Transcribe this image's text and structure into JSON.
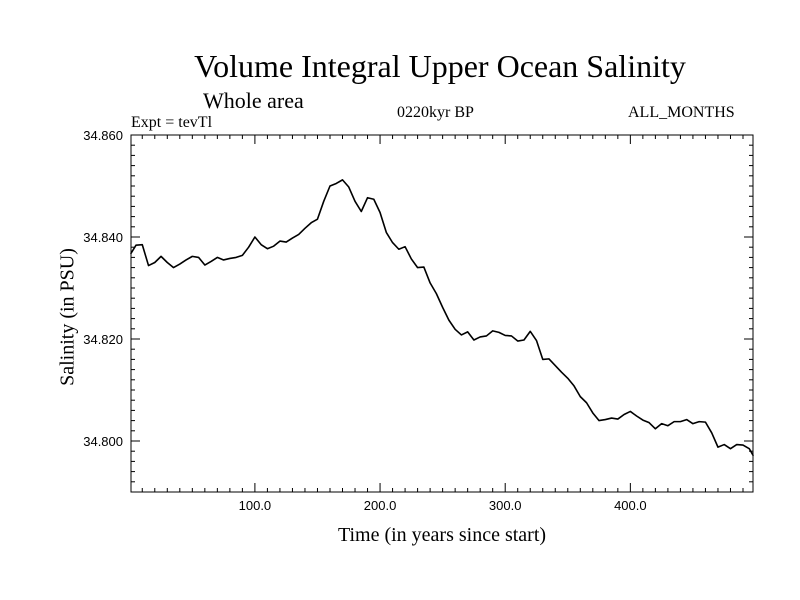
{
  "chart_data": {
    "type": "line",
    "title": "Volume Integral Upper Ocean Salinity",
    "subtitle": "Whole area",
    "experiment": "Expt = tevTl",
    "period": "0220kyr BP",
    "months": "ALL_MONTHS",
    "xlabel": "Time (in years since start)",
    "ylabel": "Salinity (in PSU)",
    "xlim": [
      1,
      498
    ],
    "ylim": [
      34.79,
      34.86
    ],
    "xticks": [
      {
        "value": 100,
        "label": "100.0"
      },
      {
        "value": 200,
        "label": "200.0"
      },
      {
        "value": 300,
        "label": "300.0"
      },
      {
        "value": 400,
        "label": "400.0"
      }
    ],
    "yticks": [
      {
        "value": 34.8,
        "label": "34.800"
      },
      {
        "value": 34.82,
        "label": "34.820"
      },
      {
        "value": 34.84,
        "label": "34.840"
      },
      {
        "value": 34.86,
        "label": "34.860"
      }
    ],
    "grid": false,
    "series": [
      {
        "name": "Salinity",
        "x": [
          1,
          5,
          10,
          15,
          20,
          25,
          30,
          35,
          40,
          45,
          50,
          55,
          60,
          65,
          70,
          75,
          80,
          85,
          90,
          95,
          100,
          105,
          110,
          115,
          120,
          125,
          130,
          135,
          140,
          145,
          150,
          155,
          160,
          165,
          170,
          175,
          180,
          185,
          190,
          195,
          200,
          205,
          210,
          215,
          220,
          225,
          230,
          235,
          240,
          245,
          250,
          255,
          260,
          265,
          270,
          275,
          280,
          285,
          290,
          295,
          300,
          305,
          310,
          315,
          320,
          325,
          330,
          335,
          340,
          345,
          350,
          355,
          360,
          365,
          370,
          375,
          380,
          385,
          390,
          395,
          400,
          405,
          410,
          415,
          420,
          425,
          430,
          435,
          440,
          445,
          450,
          455,
          460,
          465,
          470,
          475,
          480,
          485,
          490,
          495,
          498
        ],
        "values": [
          34.8368,
          34.8384,
          34.8385,
          34.8344,
          34.835,
          34.8362,
          34.835,
          34.834,
          34.8347,
          34.8355,
          34.8362,
          34.836,
          34.8345,
          34.8352,
          34.836,
          34.8355,
          34.8358,
          34.836,
          34.8364,
          34.838,
          34.84,
          34.8385,
          34.8377,
          34.8382,
          34.8392,
          34.839,
          34.8398,
          34.8405,
          34.8417,
          34.8428,
          34.8435,
          34.847,
          34.85,
          34.8505,
          34.8512,
          34.8498,
          34.847,
          34.845,
          34.8477,
          34.8474,
          34.8448,
          34.8409,
          34.8389,
          34.8376,
          34.8381,
          34.8357,
          34.834,
          34.8341,
          34.831,
          34.8289,
          34.8262,
          34.8237,
          34.8219,
          34.8208,
          34.8214,
          34.8198,
          34.8204,
          34.8206,
          34.8216,
          34.8213,
          34.8207,
          34.8206,
          34.8196,
          34.8198,
          34.8215,
          34.8197,
          34.816,
          34.8161,
          34.8148,
          34.8135,
          34.8123,
          34.8108,
          34.8087,
          34.8075,
          34.8055,
          34.804,
          34.8042,
          34.8045,
          34.8043,
          34.8052,
          34.8058,
          34.8049,
          34.8041,
          34.8036,
          34.8024,
          34.8034,
          34.803,
          34.8038,
          34.8038,
          34.8042,
          34.8034,
          34.8038,
          34.8037,
          34.8016,
          34.7988,
          34.7993,
          34.7985,
          34.7993,
          34.7992,
          34.7985,
          34.7972
        ]
      }
    ]
  }
}
